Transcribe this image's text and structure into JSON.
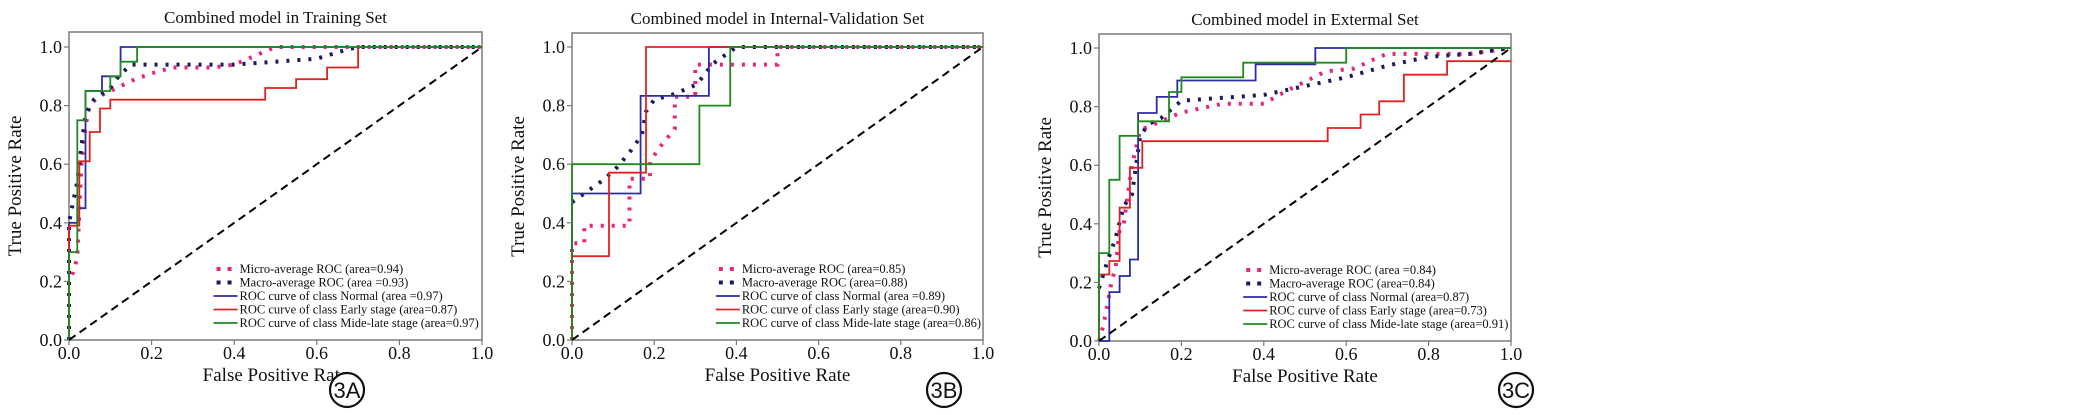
{
  "figure": {
    "panels_count": 3
  },
  "chart_data": [
    {
      "type": "line",
      "panel_label": "3A",
      "title": "Combined model in Training Set",
      "xlabel": "False Positive Rate",
      "ylabel": "True Positive Rate",
      "xlim": [
        0.0,
        1.0
      ],
      "ylim": [
        0.0,
        1.05
      ],
      "xticks": [
        "0.0",
        "0.2",
        "0.4",
        "0.6",
        "0.8",
        "1.0"
      ],
      "yticks": [
        "0.0",
        "0.2",
        "0.4",
        "0.6",
        "0.8",
        "1.0"
      ],
      "grid": false,
      "legend_position": "lower-right",
      "series": [
        {
          "name": "Micro-average ROC (area=0.94)",
          "style": "dotted",
          "color": "#e8257d",
          "x": [
            0.0,
            0.0,
            0.01,
            0.02,
            0.03,
            0.04,
            0.05,
            0.07,
            0.1,
            0.13,
            0.16,
            0.2,
            0.25,
            0.3,
            0.35,
            0.4,
            0.45,
            0.5,
            0.55,
            0.7,
            1.0
          ],
          "y": [
            0.0,
            0.2,
            0.23,
            0.28,
            0.6,
            0.73,
            0.8,
            0.83,
            0.85,
            0.87,
            0.89,
            0.91,
            0.93,
            0.93,
            0.93,
            0.94,
            0.97,
            1.0,
            1.0,
            1.0,
            1.0
          ]
        },
        {
          "name": "Macro-average ROC (area =0.93)",
          "style": "dotted",
          "color": "#1a1a5e",
          "x": [
            0.0,
            0.0,
            0.01,
            0.02,
            0.03,
            0.04,
            0.06,
            0.08,
            0.1,
            0.12,
            0.15,
            0.2,
            0.3,
            0.4,
            0.5,
            0.6,
            0.67,
            0.7,
            1.0
          ],
          "y": [
            0.0,
            0.4,
            0.47,
            0.54,
            0.66,
            0.77,
            0.82,
            0.84,
            0.86,
            0.9,
            0.94,
            0.94,
            0.94,
            0.94,
            0.95,
            0.96,
            0.99,
            1.0,
            1.0
          ]
        },
        {
          "name": "ROC curve of class Normal (area =0.97)",
          "style": "solid",
          "color": "#2c2ca8",
          "x": [
            0.0,
            0.0,
            0.02,
            0.02,
            0.04,
            0.04,
            0.08,
            0.08,
            0.1,
            0.1,
            0.125,
            0.125,
            0.165,
            0.165,
            1.0
          ],
          "y": [
            0.0,
            0.4,
            0.4,
            0.45,
            0.45,
            0.85,
            0.85,
            0.9,
            0.9,
            0.9,
            0.9,
            1.0,
            1.0,
            1.0,
            1.0
          ]
        },
        {
          "name": "ROC curve of class Early stage (area=0.87)",
          "style": "solid",
          "color": "#e32020",
          "x": [
            0.0,
            0.0,
            0.025,
            0.025,
            0.05,
            0.05,
            0.075,
            0.075,
            0.1,
            0.1,
            0.475,
            0.475,
            0.55,
            0.55,
            0.625,
            0.625,
            0.7,
            0.7,
            1.0
          ],
          "y": [
            0.0,
            0.39,
            0.39,
            0.61,
            0.61,
            0.71,
            0.71,
            0.79,
            0.79,
            0.82,
            0.82,
            0.86,
            0.86,
            0.89,
            0.89,
            0.93,
            0.93,
            1.0,
            1.0
          ]
        },
        {
          "name": "ROC curve of class Mide-late stage (area=0.97)",
          "style": "solid",
          "color": "#1f8a1f",
          "x": [
            0.0,
            0.0,
            0.02,
            0.02,
            0.04,
            0.04,
            0.1,
            0.1,
            0.125,
            0.125,
            0.165,
            0.165,
            1.0
          ],
          "y": [
            0.0,
            0.3,
            0.3,
            0.75,
            0.75,
            0.85,
            0.85,
            0.9,
            0.9,
            0.95,
            0.95,
            1.0,
            1.0
          ]
        },
        {
          "name": "Chance",
          "style": "dashed",
          "color": "#000000",
          "legend": false,
          "x": [
            0.0,
            1.0
          ],
          "y": [
            0.0,
            1.0
          ]
        }
      ]
    },
    {
      "type": "line",
      "panel_label": "3B",
      "title": "Combined model in Internal-Validation Set",
      "xlabel": "False Positive Rate",
      "ylabel": "True Positive Rate",
      "xlim": [
        0.0,
        1.0
      ],
      "ylim": [
        0.0,
        1.05
      ],
      "xticks": [
        "0.0",
        "0.2",
        "0.4",
        "0.6",
        "0.8",
        "1.0"
      ],
      "yticks": [
        "0.0",
        "0.2",
        "0.4",
        "0.6",
        "0.8",
        "1.0"
      ],
      "grid": false,
      "legend_position": "lower-right",
      "series": [
        {
          "name": "Micro-average ROC (area=0.85)",
          "style": "dotted",
          "color": "#e8257d",
          "x": [
            0.0,
            0.0,
            0.03,
            0.03,
            0.14,
            0.14,
            0.19,
            0.19,
            0.22,
            0.25,
            0.25,
            0.3,
            0.3,
            0.5,
            0.5,
            1.0
          ],
          "y": [
            0.0,
            0.33,
            0.33,
            0.39,
            0.39,
            0.55,
            0.55,
            0.61,
            0.67,
            0.72,
            0.83,
            0.83,
            0.94,
            0.94,
            1.0,
            1.0
          ]
        },
        {
          "name": "Macro-average ROC (area=0.88)",
          "style": "dotted",
          "color": "#1a1a5e",
          "x": [
            0.0,
            0.02,
            0.05,
            0.08,
            0.11,
            0.14,
            0.17,
            0.18,
            0.2,
            0.25,
            0.3,
            0.32,
            0.34,
            0.37,
            0.4,
            1.0
          ],
          "y": [
            0.47,
            0.49,
            0.52,
            0.55,
            0.59,
            0.64,
            0.7,
            0.78,
            0.82,
            0.84,
            0.87,
            0.9,
            0.94,
            0.97,
            1.0,
            1.0
          ]
        },
        {
          "name": "ROC curve of class Normal (area =0.89)",
          "style": "solid",
          "color": "#2c2ca8",
          "x": [
            0.0,
            0.0,
            0.167,
            0.167,
            0.333,
            0.333,
            1.0
          ],
          "y": [
            0.0,
            0.5,
            0.5,
            0.833,
            0.833,
            1.0,
            1.0
          ]
        },
        {
          "name": "ROC curve of class Early stage (area=0.90)",
          "style": "solid",
          "color": "#e32020",
          "x": [
            0.0,
            0.0,
            0.09,
            0.09,
            0.18,
            0.18,
            1.0
          ],
          "y": [
            0.0,
            0.286,
            0.286,
            0.571,
            0.571,
            1.0,
            1.0
          ]
        },
        {
          "name": "ROC curve of class Mide-late stage (area=0.86)",
          "style": "solid",
          "color": "#1f8a1f",
          "x": [
            0.0,
            0.0,
            0.31,
            0.31,
            0.385,
            0.385,
            1.0
          ],
          "y": [
            0.0,
            0.6,
            0.6,
            0.8,
            0.8,
            1.0,
            1.0
          ]
        },
        {
          "name": "Chance",
          "style": "dashed",
          "color": "#000000",
          "legend": false,
          "x": [
            0.0,
            1.0
          ],
          "y": [
            0.0,
            1.0
          ]
        }
      ]
    },
    {
      "type": "line",
      "panel_label": "3C",
      "title": "Combined model in Extermal Set",
      "xlabel": "False Positive Rate",
      "ylabel": "True Positive Rate",
      "xlim": [
        0.0,
        1.0
      ],
      "ylim": [
        0.0,
        1.05
      ],
      "xticks": [
        "0.0",
        "0.2",
        "0.4",
        "0.6",
        "0.8",
        "1.0"
      ],
      "yticks": [
        "0.0",
        "0.2",
        "0.4",
        "0.6",
        "0.8",
        "1.0"
      ],
      "grid": false,
      "legend_position": "lower-right",
      "series": [
        {
          "name": "Micro-average ROC (area =0.84)",
          "style": "dotted",
          "color": "#e8257d",
          "x": [
            0.0,
            0.01,
            0.02,
            0.03,
            0.04,
            0.05,
            0.06,
            0.08,
            0.1,
            0.15,
            0.2,
            0.3,
            0.4,
            0.45,
            0.55,
            0.62,
            0.68,
            0.7,
            0.9,
            1.0
          ],
          "y": [
            0.0,
            0.05,
            0.12,
            0.2,
            0.25,
            0.38,
            0.4,
            0.6,
            0.72,
            0.75,
            0.78,
            0.81,
            0.81,
            0.85,
            0.92,
            0.93,
            0.97,
            0.98,
            0.98,
            1.0
          ]
        },
        {
          "name": "Macro-average ROC (area=0.84)",
          "style": "dotted",
          "color": "#1a1a5e",
          "x": [
            0.0,
            0.02,
            0.04,
            0.06,
            0.08,
            0.1,
            0.12,
            0.15,
            0.2,
            0.3,
            0.4,
            0.5,
            0.6,
            0.7,
            0.8,
            0.9,
            1.0
          ],
          "y": [
            0.18,
            0.27,
            0.35,
            0.46,
            0.5,
            0.7,
            0.74,
            0.76,
            0.82,
            0.83,
            0.84,
            0.87,
            0.9,
            0.94,
            0.97,
            0.98,
            1.0
          ]
        },
        {
          "name": "ROC curve of class Normal (area=0.87)",
          "style": "solid",
          "color": "#2c2ca8",
          "x": [
            0.0,
            0.025,
            0.025,
            0.05,
            0.05,
            0.075,
            0.075,
            0.095,
            0.095,
            0.14,
            0.14,
            0.18,
            0.18,
            0.19,
            0.19,
            0.38,
            0.38,
            0.525,
            0.525,
            1.0
          ],
          "y": [
            0.0,
            0.0,
            0.167,
            0.167,
            0.222,
            0.222,
            0.278,
            0.278,
            0.778,
            0.778,
            0.833,
            0.833,
            0.833,
            0.833,
            0.889,
            0.889,
            0.944,
            0.944,
            1.0,
            1.0
          ]
        },
        {
          "name": "ROC curve of class Early stage (area=0.73)",
          "style": "solid",
          "color": "#e32020",
          "x": [
            0.0,
            0.0,
            0.025,
            0.025,
            0.05,
            0.05,
            0.075,
            0.075,
            0.105,
            0.105,
            0.555,
            0.555,
            0.635,
            0.635,
            0.68,
            0.68,
            0.74,
            0.74,
            0.845,
            0.845,
            1.0
          ],
          "y": [
            0.0,
            0.227,
            0.227,
            0.273,
            0.273,
            0.455,
            0.455,
            0.591,
            0.591,
            0.682,
            0.682,
            0.727,
            0.727,
            0.773,
            0.773,
            0.818,
            0.818,
            0.909,
            0.909,
            0.955,
            0.955
          ]
        },
        {
          "name": "ROC curve of class Mide-late stage (area=0.91)",
          "style": "solid",
          "color": "#1f8a1f",
          "x": [
            0.0,
            0.0,
            0.025,
            0.025,
            0.05,
            0.05,
            0.095,
            0.095,
            0.17,
            0.17,
            0.2,
            0.2,
            0.35,
            0.35,
            0.6,
            0.6,
            1.0
          ],
          "y": [
            0.0,
            0.3,
            0.3,
            0.55,
            0.55,
            0.7,
            0.7,
            0.75,
            0.75,
            0.85,
            0.85,
            0.9,
            0.9,
            0.95,
            0.95,
            1.0,
            1.0
          ]
        },
        {
          "name": "Chance",
          "style": "dashed",
          "color": "#000000",
          "legend": false,
          "x": [
            0.0,
            1.0
          ],
          "y": [
            0.0,
            1.0
          ]
        }
      ]
    }
  ]
}
